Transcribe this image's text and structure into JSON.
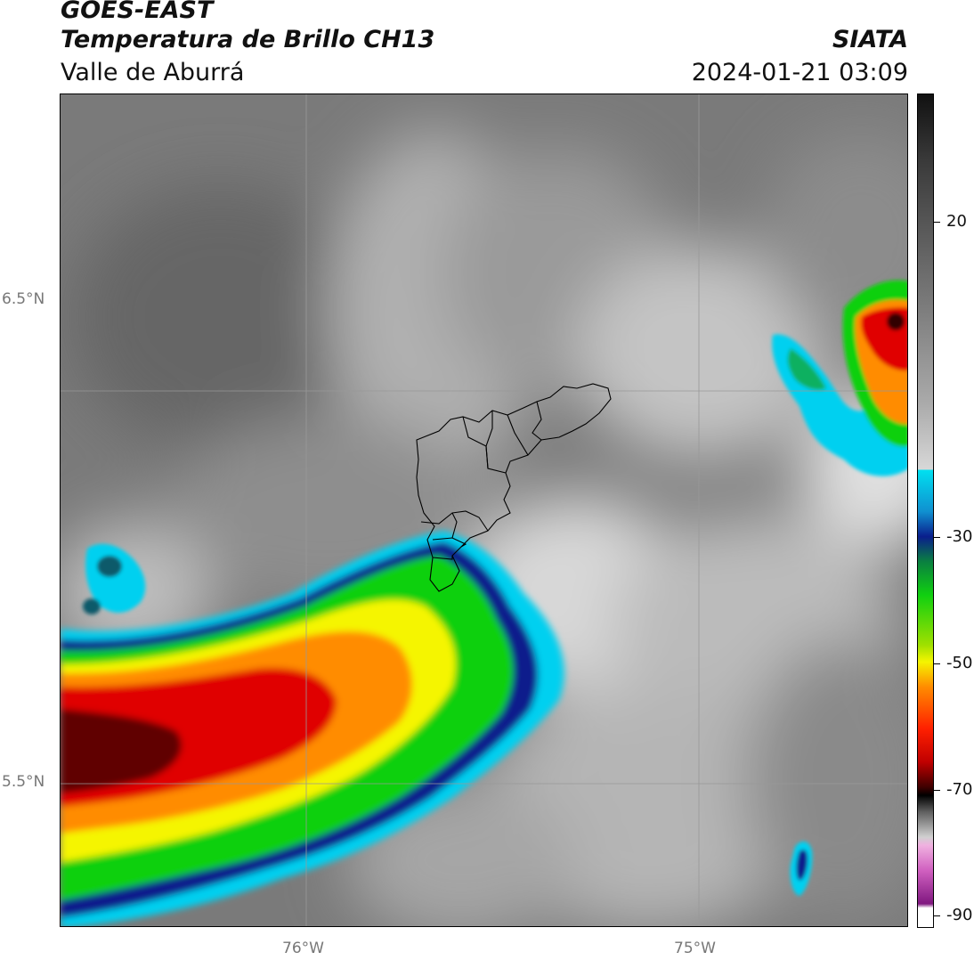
{
  "header": {
    "satellite": "GOES-EAST",
    "product": "Temperatura de Brillo CH13",
    "region": "Valle de Aburrá",
    "organization": "SIATA",
    "datetime": "2024-01-21 03:09"
  },
  "map": {
    "lat_labels": [
      "6.5°N",
      "5.5°N"
    ],
    "lon_labels": [
      "76°W",
      "75°W"
    ],
    "gridlines": true
  },
  "colorbar": {
    "ticks": [
      "20",
      "-30",
      "-50",
      "-70",
      "-90"
    ],
    "range": [
      -90,
      30
    ],
    "colors": {
      "warm_gray": "#6b6b6b",
      "light_gray": "#dcdcdc",
      "cyan": "#00d0f0",
      "navy": "#0a1e8c",
      "green": "#10d010",
      "yellow": "#f5f500",
      "orange": "#ff8c00",
      "red": "#e00000",
      "dark_red": "#500000",
      "magenta": "#d060c0"
    }
  }
}
